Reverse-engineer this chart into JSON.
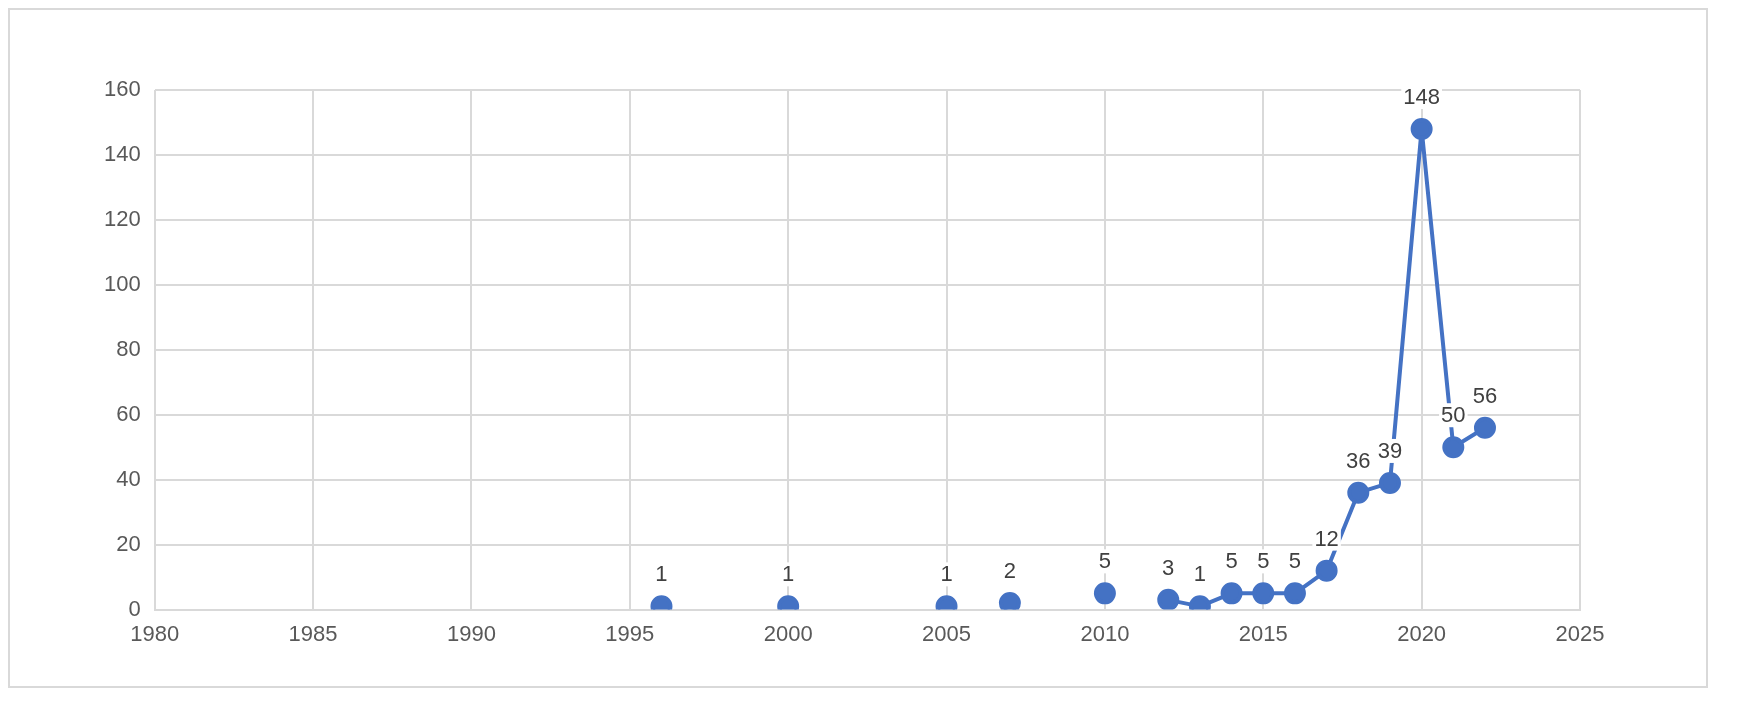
{
  "chart_data": {
    "type": "line",
    "x": [
      1996,
      1997,
      1998,
      1999,
      2000,
      2001,
      2002,
      2003,
      2004,
      2005,
      2006,
      2007,
      2008,
      2009,
      2010,
      2011,
      2012,
      2013,
      2014,
      2015,
      2016,
      2017,
      2018,
      2019,
      2020,
      2021,
      2022
    ],
    "series": [
      {
        "color": "#4472c4",
        "values": [
          1,
          null,
          null,
          null,
          1,
          null,
          null,
          null,
          null,
          1,
          null,
          2,
          null,
          null,
          5,
          null,
          3,
          1,
          5,
          5,
          5,
          12,
          36,
          39,
          148,
          50,
          56
        ]
      }
    ],
    "xlim": [
      1980,
      2025
    ],
    "xticks": [
      1980,
      1985,
      1990,
      1995,
      2000,
      2005,
      2010,
      2015,
      2020,
      2025
    ],
    "ylim": [
      0,
      160
    ],
    "yticks": [
      0,
      20,
      40,
      60,
      80,
      100,
      120,
      140,
      160
    ],
    "grid": true,
    "legend": false,
    "marker": "circle",
    "line_style": "solid",
    "data_labels": true
  }
}
